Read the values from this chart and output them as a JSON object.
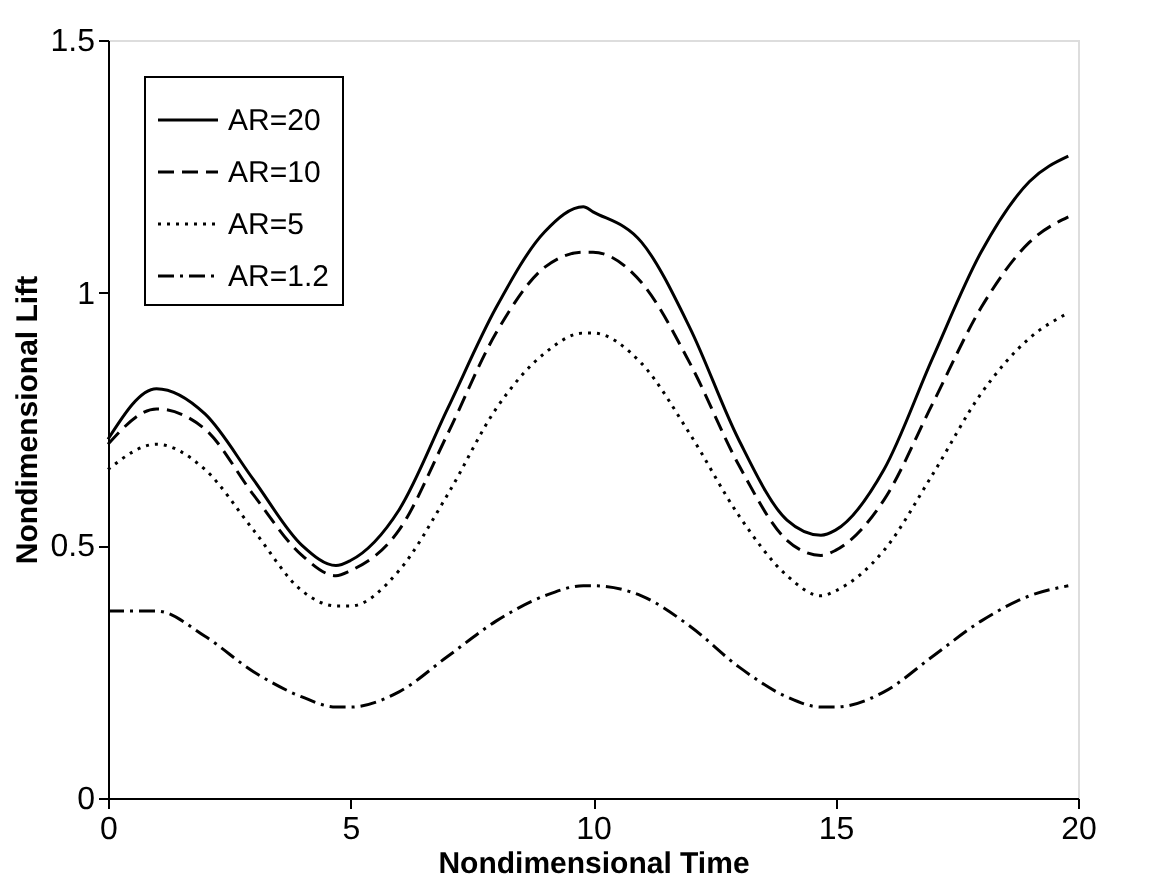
{
  "chart_data": {
    "type": "line",
    "xlabel": "Nondimensional Time",
    "ylabel": "Nondimensional Lift",
    "x": [
      0,
      1,
      2,
      3,
      4,
      4.7,
      5,
      6,
      7,
      8,
      9,
      9.8,
      10,
      11,
      12,
      13,
      14,
      14.7,
      15,
      16,
      17,
      18,
      19,
      19.8
    ],
    "series": [
      {
        "name": "AR=20",
        "color": "#000000",
        "line_style": "solid",
        "values": [
          0.71,
          0.81,
          0.76,
          0.63,
          0.5,
          0.46,
          0.47,
          0.57,
          0.77,
          0.97,
          1.12,
          1.17,
          1.16,
          1.1,
          0.93,
          0.71,
          0.55,
          0.52,
          0.53,
          0.65,
          0.87,
          1.08,
          1.22,
          1.27
        ]
      },
      {
        "name": "AR=10",
        "color": "#000000",
        "line_style": "dashed",
        "values": [
          0.7,
          0.77,
          0.73,
          0.6,
          0.48,
          0.44,
          0.45,
          0.53,
          0.72,
          0.92,
          1.05,
          1.08,
          1.08,
          1.02,
          0.86,
          0.66,
          0.51,
          0.48,
          0.49,
          0.59,
          0.78,
          0.97,
          1.1,
          1.15
        ]
      },
      {
        "name": "AR=5",
        "color": "#000000",
        "line_style": "dotted",
        "values": [
          0.65,
          0.7,
          0.65,
          0.53,
          0.41,
          0.38,
          0.38,
          0.45,
          0.6,
          0.77,
          0.88,
          0.92,
          0.92,
          0.86,
          0.72,
          0.56,
          0.44,
          0.4,
          0.41,
          0.49,
          0.64,
          0.8,
          0.91,
          0.96
        ]
      },
      {
        "name": "AR=1.2",
        "color": "#000000",
        "line_style": "dashdot",
        "values": [
          0.37,
          0.37,
          0.32,
          0.25,
          0.2,
          0.18,
          0.18,
          0.21,
          0.28,
          0.35,
          0.4,
          0.42,
          0.42,
          0.4,
          0.34,
          0.26,
          0.2,
          0.18,
          0.18,
          0.21,
          0.28,
          0.35,
          0.4,
          0.42
        ]
      }
    ],
    "xlim": [
      0,
      20
    ],
    "xticks": [
      0,
      5,
      10,
      15,
      20
    ],
    "ylim": [
      0,
      1.5
    ],
    "yticks": [
      0,
      0.5,
      1,
      1.5
    ],
    "grid": false,
    "legend": "top left",
    "marker": "none"
  }
}
